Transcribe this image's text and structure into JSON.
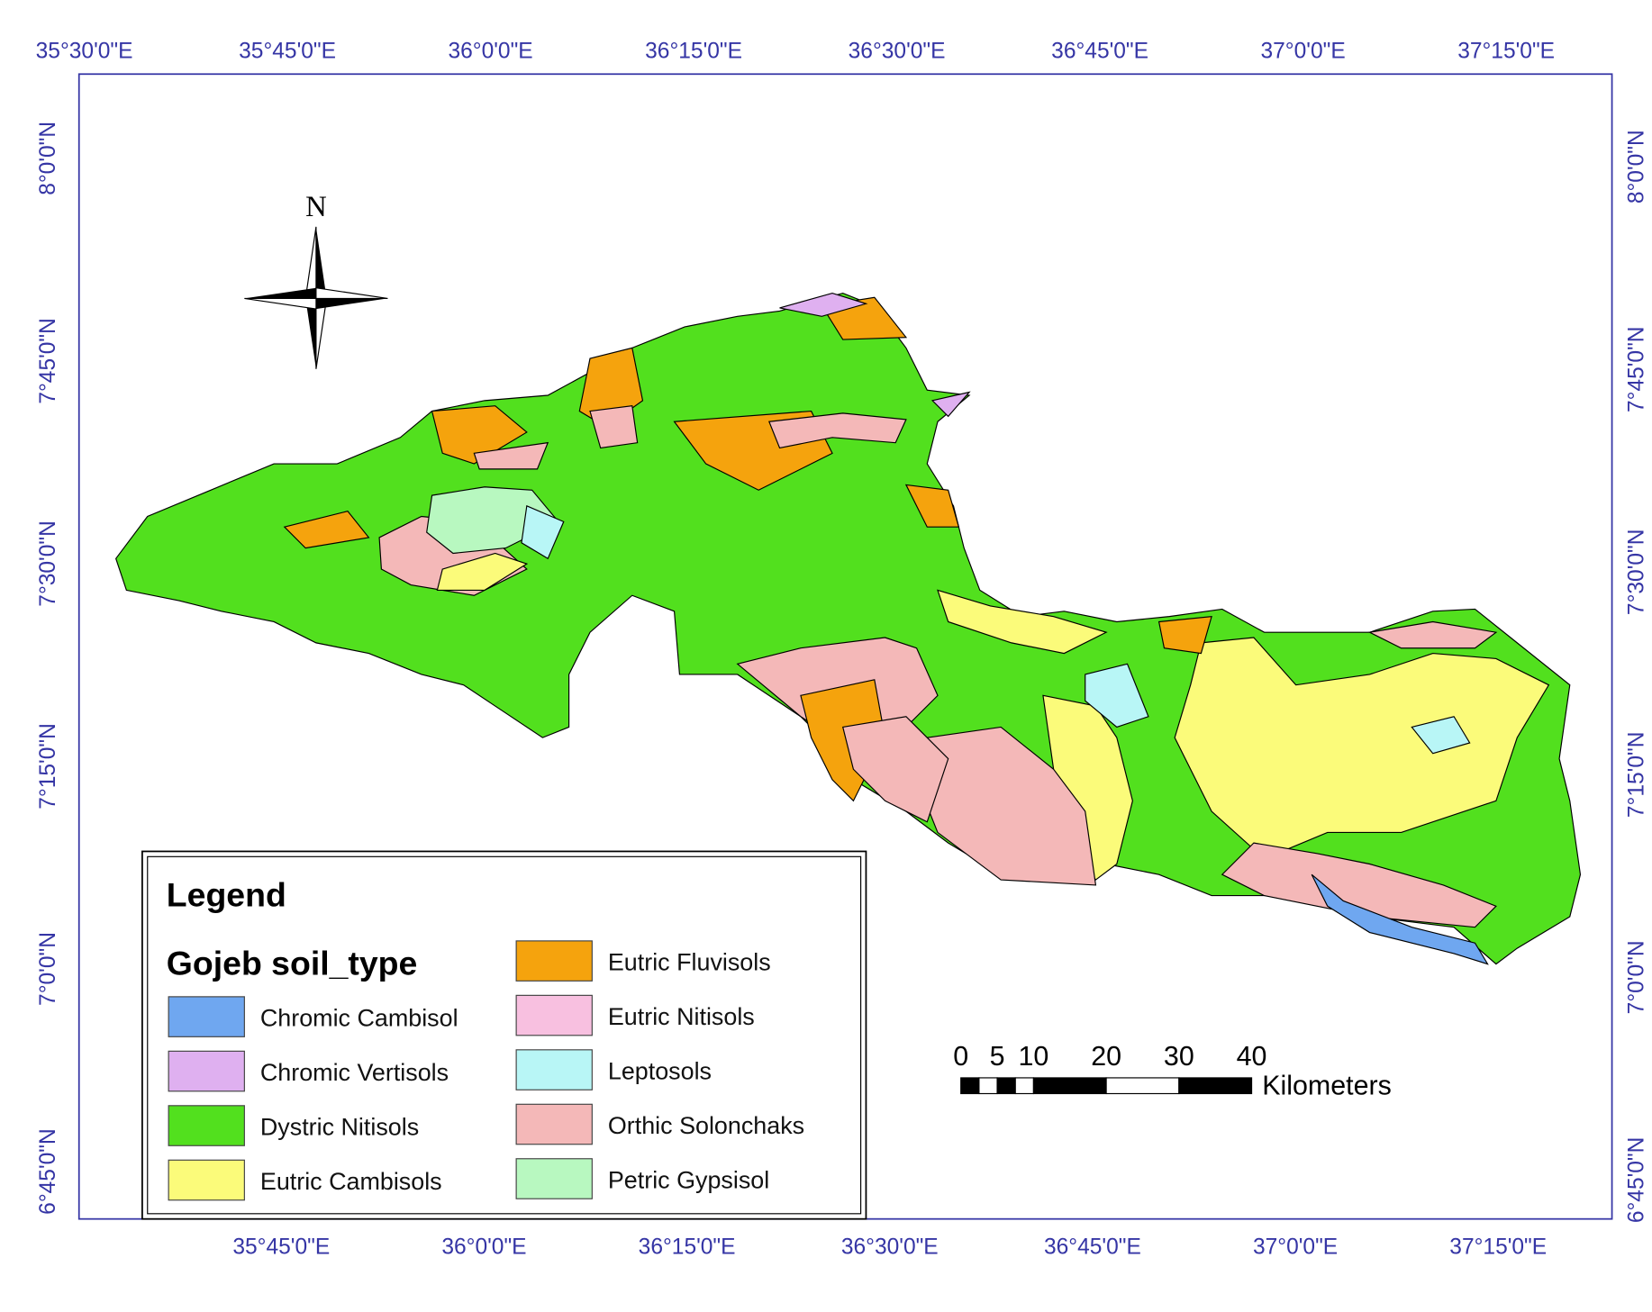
{
  "graticule": {
    "top": [
      "35°30'0\"E",
      "35°45'0\"E",
      "36°0'0\"E",
      "36°15'0\"E",
      "36°30'0\"E",
      "36°45'0\"E",
      "37°0'0\"E",
      "37°15'0\"E"
    ],
    "bottom": [
      "35°45'0\"E",
      "36°0'0\"E",
      "36°15'0\"E",
      "36°30'0\"E",
      "36°45'0\"E",
      "37°0'0\"E",
      "37°15'0\"E"
    ],
    "left": [
      "8°0'0\"N",
      "7°45'0\"N",
      "7°30'0\"N",
      "7°15'0\"N",
      "7°0'0\"N",
      "6°45'0\"N"
    ],
    "right": [
      "8°0'0\"N",
      "7°45'0\"N",
      "7°30'0\"N",
      "7°15'0\"N",
      "7°0'0\"N",
      "6°45'0\"N"
    ]
  },
  "north": "N",
  "legend": {
    "title": "Legend",
    "subtitle": "Gojeb soil_type",
    "items": [
      {
        "name": "Chromic Cambisol",
        "color": "#6fa7f0"
      },
      {
        "name": "Chromic Vertisols",
        "color": "#dfb0f0"
      },
      {
        "name": "Dystric Nitisols",
        "color": "#52e01e"
      },
      {
        "name": "Eutric Cambisols",
        "color": "#fbfb7a"
      },
      {
        "name": "Eutric Fluvisols",
        "color": "#f5a30d"
      },
      {
        "name": "Eutric Nitisols",
        "color": "#f8c0e0"
      },
      {
        "name": "Leptosols",
        "color": "#b8f6f6"
      },
      {
        "name": "Orthic Solonchaks",
        "color": "#f4b8b8"
      },
      {
        "name": "Petric Gypsisol",
        "color": "#b8f8c0"
      }
    ]
  },
  "scale": {
    "labels": [
      0,
      5,
      10,
      20,
      30,
      40
    ],
    "unit": "Kilometers"
  }
}
